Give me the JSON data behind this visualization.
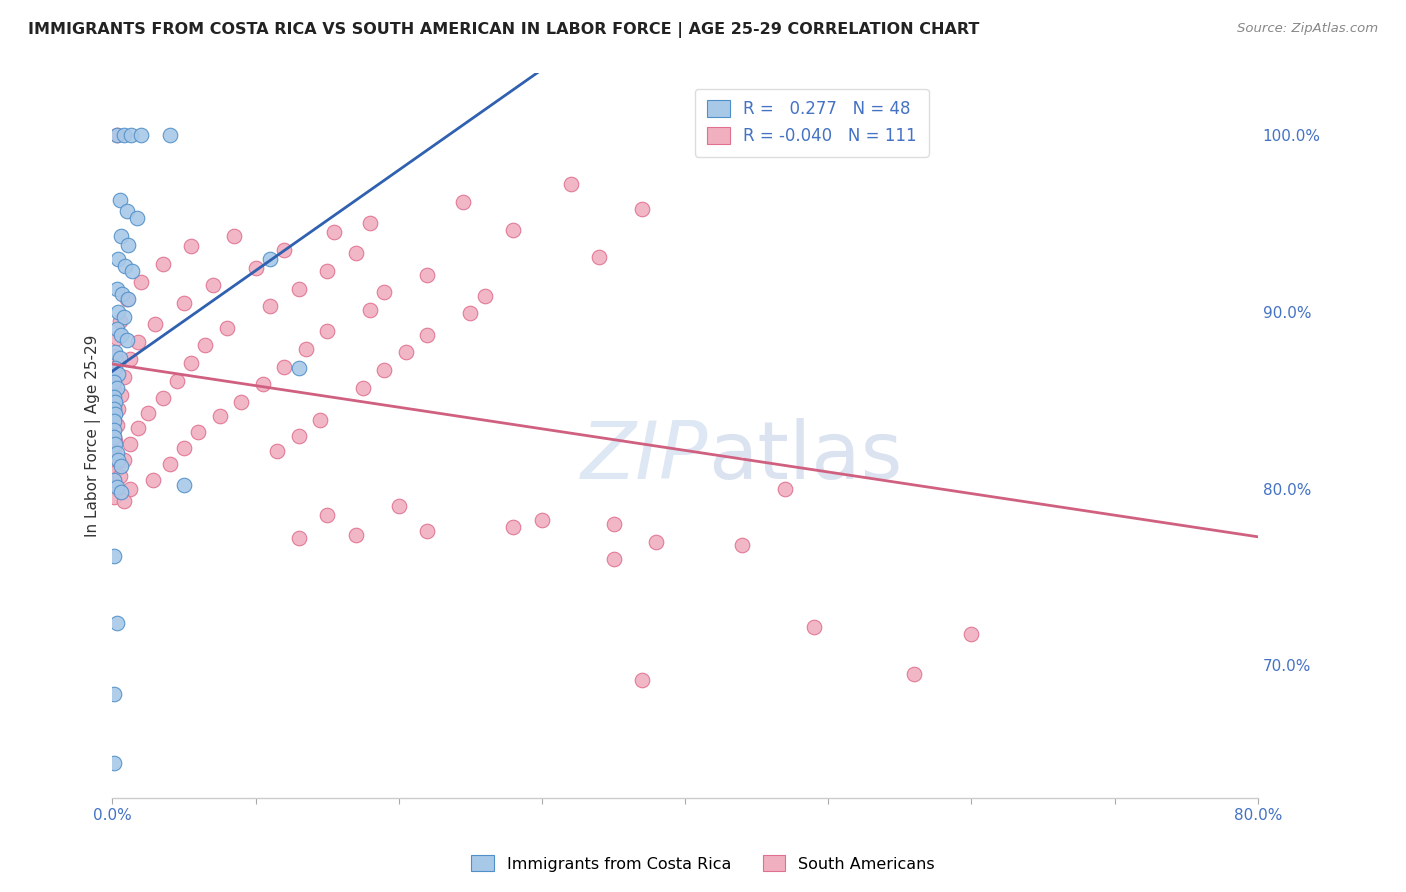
{
  "title": "IMMIGRANTS FROM COSTA RICA VS SOUTH AMERICAN IN LABOR FORCE | AGE 25-29 CORRELATION CHART",
  "source": "Source: ZipAtlas.com",
  "ylabel": "In Labor Force | Age 25-29",
  "xlim": [
    0.0,
    0.8
  ],
  "ylim": [
    0.625,
    1.035
  ],
  "x_ticks": [
    0.0,
    0.1,
    0.2,
    0.3,
    0.4,
    0.5,
    0.6,
    0.7,
    0.8
  ],
  "x_tick_labels": [
    "0.0%",
    "",
    "",
    "",
    "",
    "",
    "",
    "",
    "80.0%"
  ],
  "y_ticks": [
    0.7,
    0.8,
    0.9,
    1.0
  ],
  "y_tick_labels": [
    "70.0%",
    "80.0%",
    "90.0%",
    "100.0%"
  ],
  "cr_color": "#a8c8e8",
  "sa_color": "#f0b0c0",
  "cr_edge_color": "#5090c8",
  "sa_edge_color": "#e07090",
  "cr_line_color": "#3060b0",
  "sa_line_color": "#d06080",
  "watermark_color": "#d0dff0",
  "cr_scatter": [
    [
      0.003,
      1.0
    ],
    [
      0.008,
      1.0
    ],
    [
      0.013,
      1.0
    ],
    [
      0.02,
      1.0
    ],
    [
      0.04,
      1.0
    ],
    [
      0.005,
      0.963
    ],
    [
      0.01,
      0.957
    ],
    [
      0.017,
      0.953
    ],
    [
      0.006,
      0.943
    ],
    [
      0.011,
      0.938
    ],
    [
      0.004,
      0.93
    ],
    [
      0.009,
      0.926
    ],
    [
      0.014,
      0.923
    ],
    [
      0.003,
      0.913
    ],
    [
      0.007,
      0.91
    ],
    [
      0.011,
      0.907
    ],
    [
      0.004,
      0.9
    ],
    [
      0.008,
      0.897
    ],
    [
      0.003,
      0.89
    ],
    [
      0.006,
      0.887
    ],
    [
      0.01,
      0.884
    ],
    [
      0.002,
      0.877
    ],
    [
      0.005,
      0.874
    ],
    [
      0.002,
      0.868
    ],
    [
      0.004,
      0.865
    ],
    [
      0.001,
      0.86
    ],
    [
      0.003,
      0.857
    ],
    [
      0.001,
      0.852
    ],
    [
      0.002,
      0.849
    ],
    [
      0.001,
      0.845
    ],
    [
      0.002,
      0.842
    ],
    [
      0.001,
      0.838
    ],
    [
      0.001,
      0.833
    ],
    [
      0.001,
      0.829
    ],
    [
      0.002,
      0.825
    ],
    [
      0.003,
      0.82
    ],
    [
      0.004,
      0.816
    ],
    [
      0.006,
      0.813
    ],
    [
      0.001,
      0.805
    ],
    [
      0.003,
      0.801
    ],
    [
      0.006,
      0.798
    ],
    [
      0.001,
      0.762
    ],
    [
      0.003,
      0.724
    ],
    [
      0.001,
      0.684
    ],
    [
      0.001,
      0.645
    ],
    [
      0.11,
      0.93
    ],
    [
      0.13,
      0.868
    ],
    [
      0.05,
      0.802
    ]
  ],
  "sa_scatter": [
    [
      0.003,
      1.0
    ],
    [
      0.32,
      0.972
    ],
    [
      0.245,
      0.962
    ],
    [
      0.18,
      0.95
    ],
    [
      0.37,
      0.958
    ],
    [
      0.085,
      0.943
    ],
    [
      0.155,
      0.945
    ],
    [
      0.28,
      0.946
    ],
    [
      0.055,
      0.937
    ],
    [
      0.12,
      0.935
    ],
    [
      0.17,
      0.933
    ],
    [
      0.34,
      0.931
    ],
    [
      0.035,
      0.927
    ],
    [
      0.1,
      0.925
    ],
    [
      0.15,
      0.923
    ],
    [
      0.22,
      0.921
    ],
    [
      0.02,
      0.917
    ],
    [
      0.07,
      0.915
    ],
    [
      0.13,
      0.913
    ],
    [
      0.19,
      0.911
    ],
    [
      0.26,
      0.909
    ],
    [
      0.01,
      0.907
    ],
    [
      0.05,
      0.905
    ],
    [
      0.11,
      0.903
    ],
    [
      0.18,
      0.901
    ],
    [
      0.25,
      0.899
    ],
    [
      0.005,
      0.895
    ],
    [
      0.03,
      0.893
    ],
    [
      0.08,
      0.891
    ],
    [
      0.15,
      0.889
    ],
    [
      0.22,
      0.887
    ],
    [
      0.003,
      0.885
    ],
    [
      0.018,
      0.883
    ],
    [
      0.065,
      0.881
    ],
    [
      0.135,
      0.879
    ],
    [
      0.205,
      0.877
    ],
    [
      0.002,
      0.875
    ],
    [
      0.012,
      0.873
    ],
    [
      0.055,
      0.871
    ],
    [
      0.12,
      0.869
    ],
    [
      0.19,
      0.867
    ],
    [
      0.001,
      0.865
    ],
    [
      0.008,
      0.863
    ],
    [
      0.045,
      0.861
    ],
    [
      0.105,
      0.859
    ],
    [
      0.175,
      0.857
    ],
    [
      0.001,
      0.855
    ],
    [
      0.006,
      0.853
    ],
    [
      0.035,
      0.851
    ],
    [
      0.09,
      0.849
    ],
    [
      0.001,
      0.847
    ],
    [
      0.004,
      0.845
    ],
    [
      0.025,
      0.843
    ],
    [
      0.075,
      0.841
    ],
    [
      0.145,
      0.839
    ],
    [
      0.001,
      0.838
    ],
    [
      0.003,
      0.836
    ],
    [
      0.018,
      0.834
    ],
    [
      0.06,
      0.832
    ],
    [
      0.13,
      0.83
    ],
    [
      0.001,
      0.829
    ],
    [
      0.002,
      0.827
    ],
    [
      0.012,
      0.825
    ],
    [
      0.05,
      0.823
    ],
    [
      0.115,
      0.821
    ],
    [
      0.001,
      0.82
    ],
    [
      0.001,
      0.818
    ],
    [
      0.008,
      0.816
    ],
    [
      0.04,
      0.814
    ],
    [
      0.001,
      0.811
    ],
    [
      0.001,
      0.809
    ],
    [
      0.005,
      0.807
    ],
    [
      0.028,
      0.805
    ],
    [
      0.003,
      0.8
    ],
    [
      0.012,
      0.8
    ],
    [
      0.47,
      0.8
    ],
    [
      0.001,
      0.795
    ],
    [
      0.008,
      0.793
    ],
    [
      0.2,
      0.79
    ],
    [
      0.15,
      0.785
    ],
    [
      0.3,
      0.782
    ],
    [
      0.35,
      0.78
    ],
    [
      0.28,
      0.778
    ],
    [
      0.22,
      0.776
    ],
    [
      0.17,
      0.774
    ],
    [
      0.13,
      0.772
    ],
    [
      0.38,
      0.77
    ],
    [
      0.44,
      0.768
    ],
    [
      0.35,
      0.76
    ],
    [
      0.49,
      0.722
    ],
    [
      0.6,
      0.718
    ],
    [
      0.56,
      0.695
    ],
    [
      0.37,
      0.692
    ]
  ]
}
